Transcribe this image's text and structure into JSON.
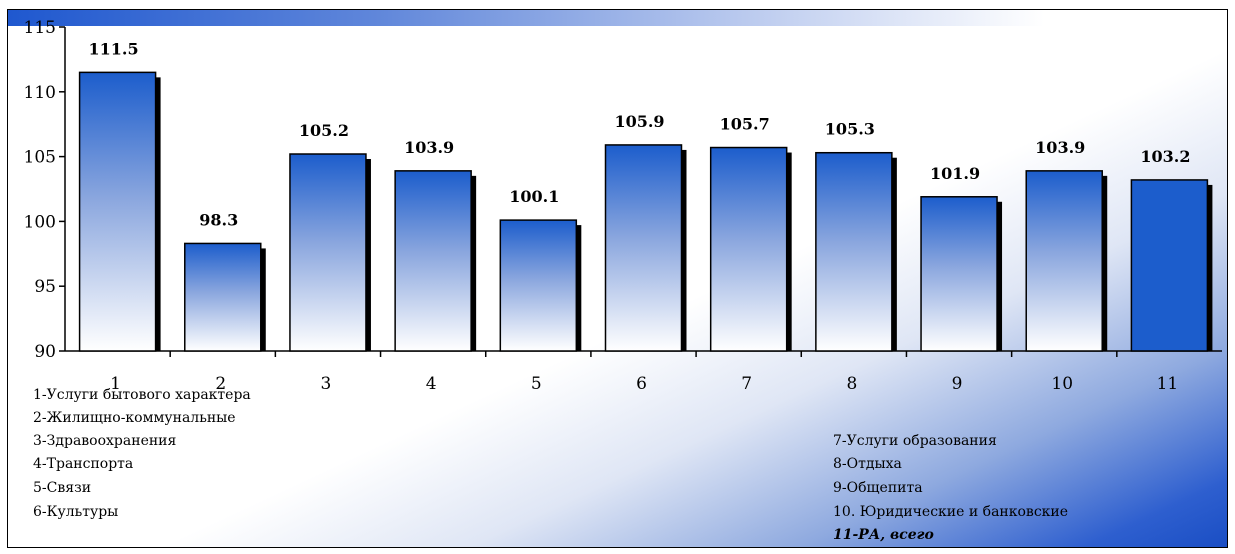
{
  "chart_data": {
    "type": "bar",
    "categories": [
      "1",
      "2",
      "3",
      "4",
      "5",
      "6",
      "7",
      "8",
      "9",
      "10",
      "11"
    ],
    "values": [
      111.5,
      98.3,
      105.2,
      103.9,
      100.1,
      105.9,
      105.7,
      105.3,
      101.9,
      103.9,
      103.2
    ],
    "data_labels": [
      "111.5",
      "98.3",
      "105.2",
      "103.9",
      "100.1",
      "105.9",
      "105.7",
      "105.3",
      "101.9",
      "103.9",
      "103.2"
    ],
    "ylim": [
      90,
      115
    ],
    "yticks": [
      "90",
      "95",
      "100",
      "105",
      "110",
      "115"
    ],
    "grid": false,
    "legend": {
      "left": [
        "1-Услуги бытового характера",
        "2-Жилищно-коммунальные",
        "3-Здравоохранения",
        "4-Транспорта",
        "5-Связи",
        "6-Культуры"
      ],
      "right": [
        "7-Услуги образования",
        "8-Отдыха",
        "9-Общепита",
        "10. Юридические и банковские"
      ],
      "total": "11-РА, всего"
    },
    "colors": {
      "bar_top": "#1c5dcc",
      "bar_bottom": "#ffffff",
      "bar_total": "#1c5dcc",
      "shadow": "#000000"
    }
  }
}
